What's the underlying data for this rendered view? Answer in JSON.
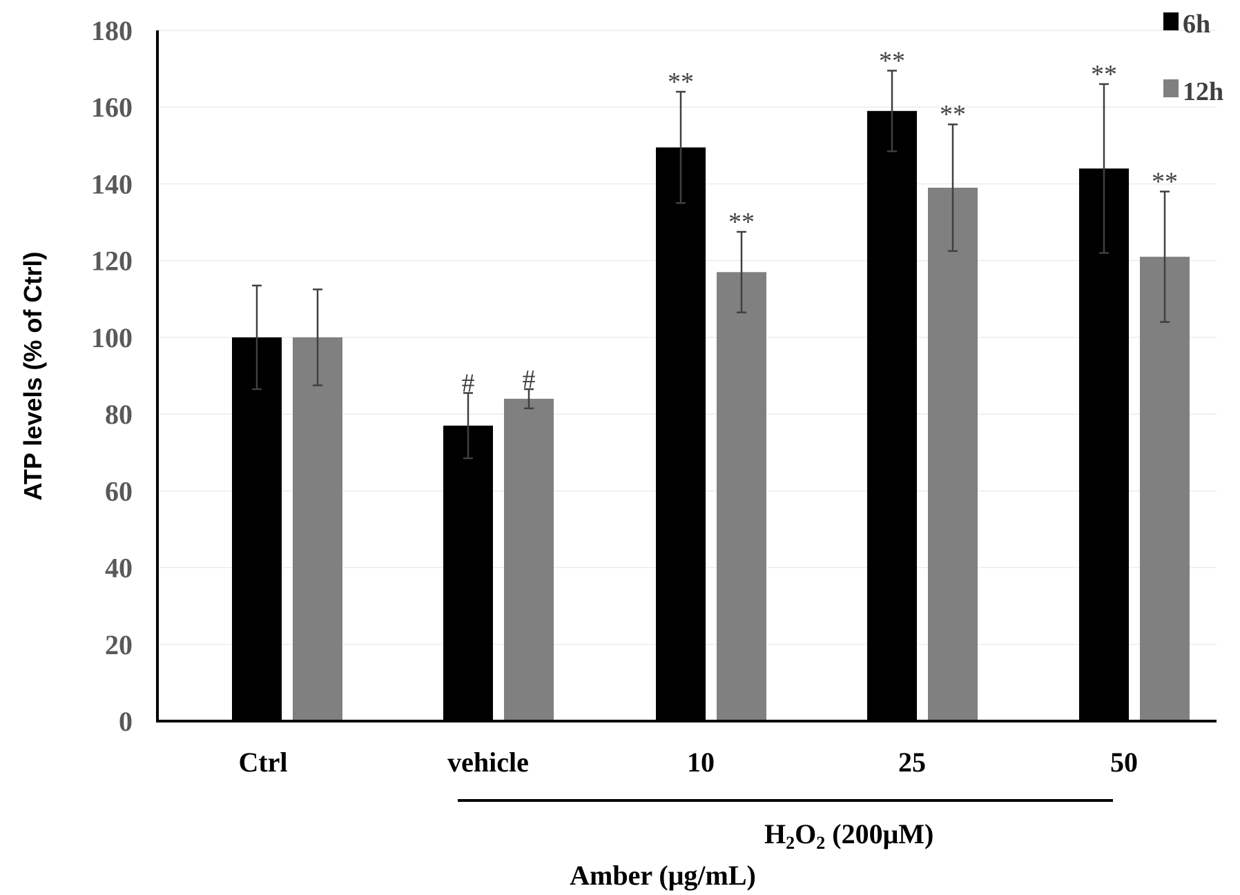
{
  "chart_data": {
    "type": "bar",
    "title": "",
    "xlabel": "Amber (μg/mL)",
    "ylabel": "ATP levels (% of Ctrl)",
    "ylim": [
      0,
      180
    ],
    "yticks": [
      0,
      20,
      40,
      60,
      80,
      100,
      120,
      140,
      160,
      180
    ],
    "grid": true,
    "categories": [
      "Ctrl",
      "vehicle",
      "10",
      "25",
      "50"
    ],
    "series": [
      {
        "name": "6h",
        "color": "#000000",
        "values": [
          100,
          77,
          149.5,
          159,
          144
        ],
        "errors": [
          13.5,
          8.5,
          14.5,
          10.5,
          22
        ],
        "significance": [
          "",
          "#",
          "**",
          "**",
          "**"
        ]
      },
      {
        "name": "12h",
        "color": "#808080",
        "values": [
          100,
          84,
          117,
          139,
          121
        ],
        "errors": [
          12.5,
          2.5,
          10.5,
          16.5,
          17
        ],
        "significance": [
          "",
          "#",
          "**",
          "**",
          "**"
        ]
      }
    ],
    "legend": {
      "position": "top-right",
      "entries": [
        "6h",
        "12h"
      ]
    },
    "annotation": {
      "bracket_label_base": "H",
      "bracket_label_sub1": "2",
      "bracket_label_mid": "O",
      "bracket_label_sub2": "2",
      "bracket_label_rest": " (200μM)",
      "bracket_from_category": "vehicle",
      "bracket_to_category": "50"
    }
  }
}
